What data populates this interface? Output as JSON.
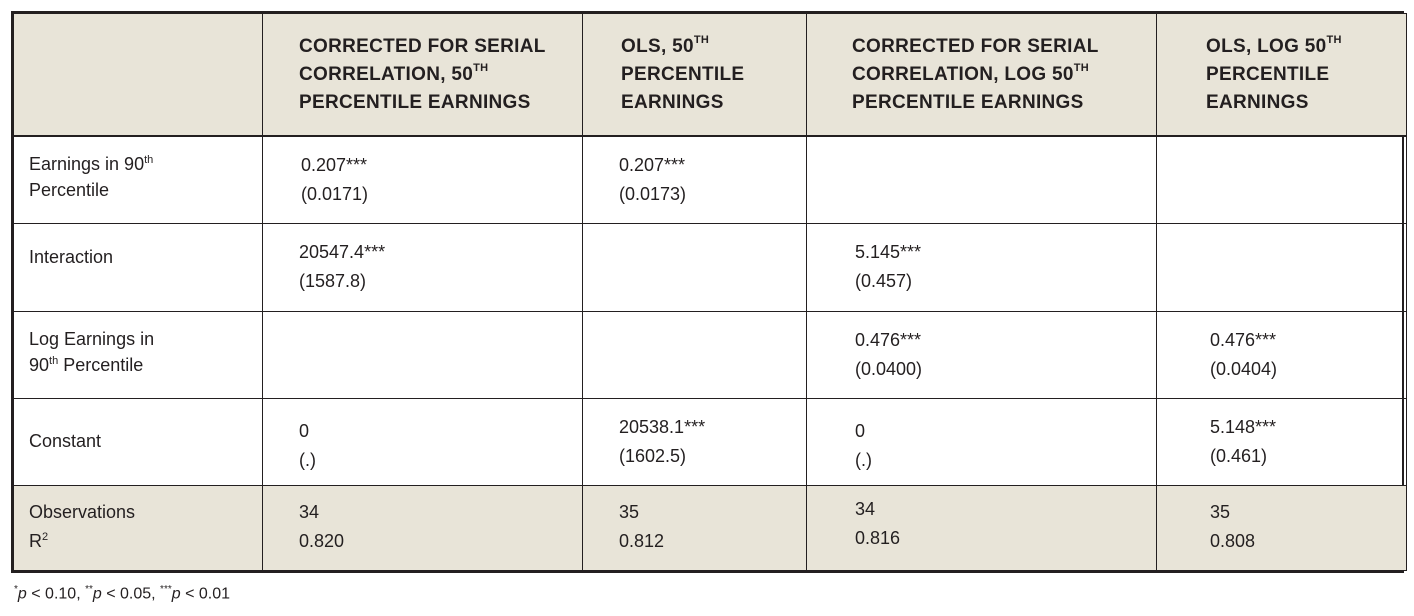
{
  "table": {
    "columns": [
      {
        "text": "CORRECTED FOR SERIAL CORRELATION, 50",
        "sup": "TH",
        "rest": " PERCENTILE EARNINGS"
      },
      {
        "text": "OLS, 50",
        "sup": "TH",
        "rest": " PERCENTILE EARNINGS"
      },
      {
        "text": "CORRECTED FOR SERIAL CORRELATION, LOG 50",
        "sup": "TH",
        "rest": " PERCENTILE EARNINGS"
      },
      {
        "text": "OLS, LOG 50",
        "sup": "TH",
        "rest": " PERCENTILE EARNINGS"
      }
    ],
    "rows": [
      {
        "label_a": "Earnings in 90",
        "label_sup": "th",
        "label_b": "Percentile",
        "cells": [
          {
            "coef": "0.207***",
            "se": "(0.0171)"
          },
          {
            "coef": "0.207***",
            "se": "(0.0173)"
          },
          {
            "coef": "",
            "se": ""
          },
          {
            "coef": "",
            "se": ""
          }
        ]
      },
      {
        "label": "Interaction",
        "cells": [
          {
            "coef": "20547.4***",
            "se": "(1587.8)"
          },
          {
            "coef": "",
            "se": ""
          },
          {
            "coef": "5.145***",
            "se": "(0.457)"
          },
          {
            "coef": "",
            "se": ""
          }
        ]
      },
      {
        "label_a": "Log Earnings in",
        "label_b_pre": "90",
        "label_sup": "th",
        "label_b": " Percentile",
        "cells": [
          {
            "coef": "",
            "se": ""
          },
          {
            "coef": "",
            "se": ""
          },
          {
            "coef": "0.476***",
            "se": "(0.0400)"
          },
          {
            "coef": "0.476***",
            "se": "(0.0404)"
          }
        ]
      },
      {
        "label": "Constant",
        "cells": [
          {
            "coef": "0",
            "se": "(.)"
          },
          {
            "coef": "20538.1***",
            "se": "(1602.5)"
          },
          {
            "coef": "0",
            "se": "(.)"
          },
          {
            "coef": "5.148***",
            "se": "(0.461)"
          }
        ]
      }
    ],
    "footer": {
      "label_a": "Observations",
      "label_b": "R",
      "label_b_sup": "2",
      "cells": [
        {
          "obs": "34",
          "r2": "0.820"
        },
        {
          "obs": "35",
          "r2": "0.812"
        },
        {
          "obs": "34",
          "r2": "0.816"
        },
        {
          "obs": "35",
          "r2": "0.808"
        }
      ]
    }
  },
  "footnote": {
    "s1": "*",
    "p1": "p",
    "t1": " < 0.10, ",
    "s2": "**",
    "p2": "p",
    "t2": " < 0.05, ",
    "s3": "***",
    "p3": "p",
    "t3": " < 0.01"
  }
}
